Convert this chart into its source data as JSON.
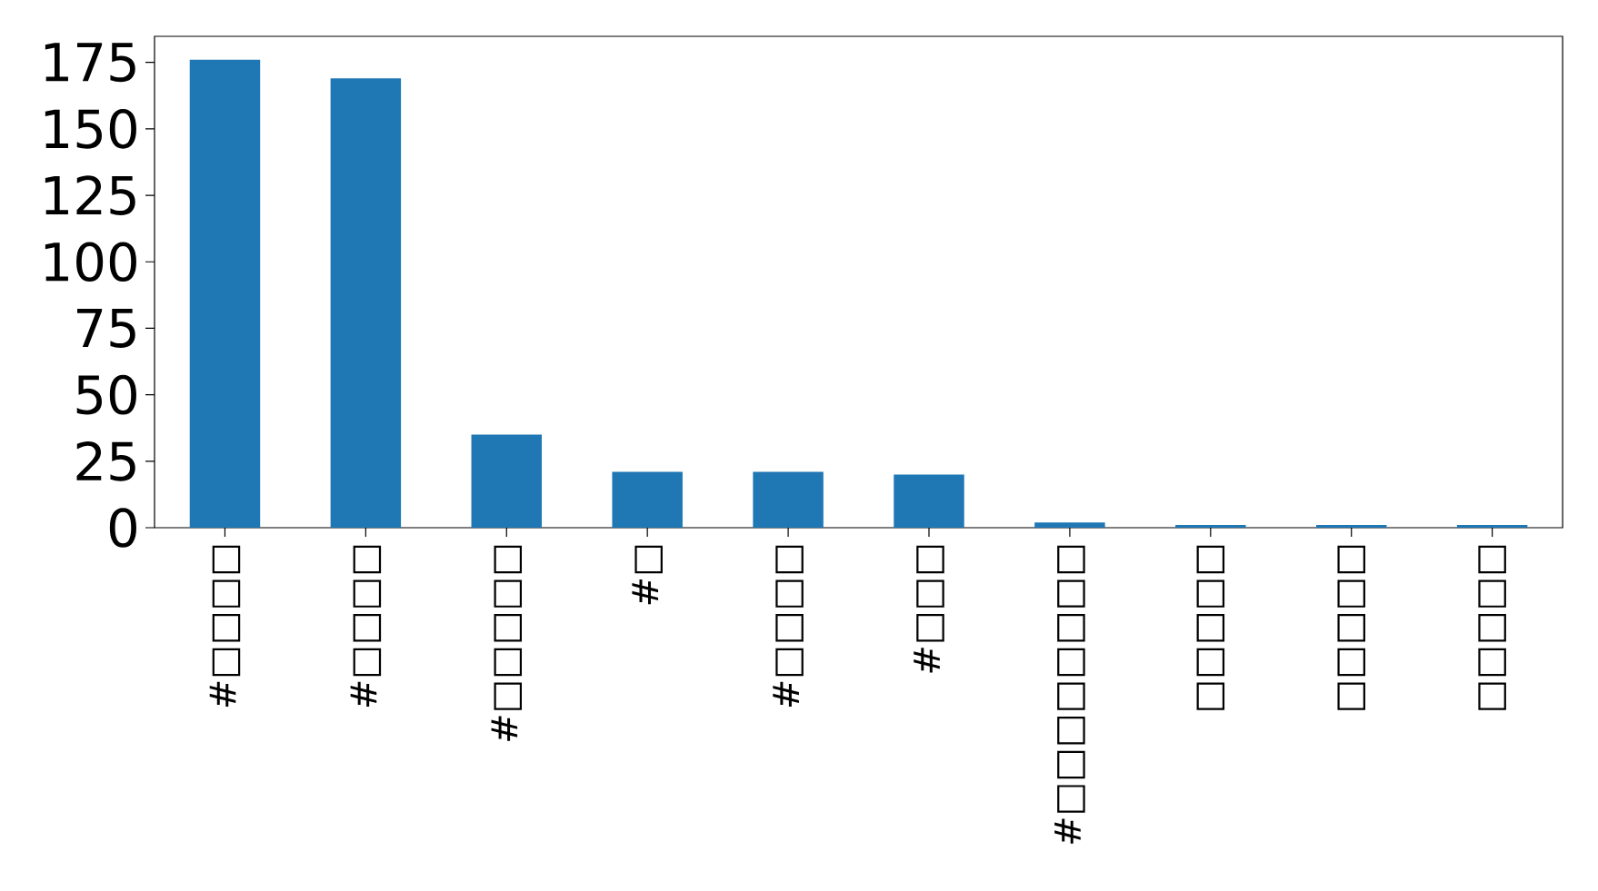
{
  "chart_data": {
    "type": "bar",
    "categories": [
      "#□□□□",
      "#□□□□",
      "#□□□□□",
      "#□",
      "#□□□□",
      "#□□□",
      "#□□□□□□□□",
      "□□□□□",
      "□□□□□",
      "□□□□□"
    ],
    "values": [
      176,
      169,
      35,
      21,
      21,
      20,
      2,
      1,
      1,
      1
    ],
    "color": "#1f77b4",
    "ylim": [
      0,
      184.8
    ],
    "yticks": [
      0,
      25,
      50,
      75,
      100,
      125,
      150,
      175
    ],
    "grid": false
  }
}
